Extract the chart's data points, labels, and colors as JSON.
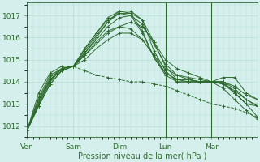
{
  "bg_color": "#d5f0ec",
  "grid_color_major": "#b8ddd8",
  "grid_color_minor": "#c8eae5",
  "line_color": "#2d6a2d",
  "xlabel": "Pression niveau de la mer( hPa )",
  "ylim": [
    1011.5,
    1017.6
  ],
  "yticks": [
    1012,
    1013,
    1014,
    1015,
    1016,
    1017
  ],
  "xtick_labels": [
    "Ven",
    "Sam",
    "Dim",
    "Lun",
    "Mar"
  ],
  "xtick_positions": [
    0,
    24,
    48,
    72,
    96
  ],
  "total_hours": 120,
  "marker": "+",
  "markersize": 3,
  "linewidth": 0.7,
  "vlines": [
    0,
    72,
    96
  ],
  "series": [
    {
      "style": "solid",
      "x": [
        0,
        6,
        12,
        18,
        24,
        30,
        36,
        42,
        48,
        54,
        60,
        66,
        72,
        78,
        84,
        90,
        96,
        102,
        108,
        114,
        120
      ],
      "y": [
        1011.8,
        1013.3,
        1014.3,
        1014.6,
        1014.7,
        1015.2,
        1015.7,
        1016.2,
        1016.5,
        1016.7,
        1016.5,
        1015.8,
        1015.0,
        1014.6,
        1014.4,
        1014.2,
        1014.0,
        1013.7,
        1013.2,
        1012.7,
        1012.3
      ]
    },
    {
      "style": "solid",
      "x": [
        0,
        6,
        12,
        18,
        24,
        30,
        36,
        42,
        48,
        54,
        60,
        66,
        72,
        78,
        84,
        90,
        96,
        102,
        108,
        114,
        120
      ],
      "y": [
        1011.8,
        1013.2,
        1014.2,
        1014.6,
        1014.7,
        1015.3,
        1015.9,
        1016.5,
        1016.9,
        1017.0,
        1016.6,
        1015.7,
        1014.8,
        1014.3,
        1014.1,
        1014.0,
        1014.0,
        1014.0,
        1013.5,
        1013.0,
        1013.0
      ]
    },
    {
      "style": "solid",
      "x": [
        0,
        6,
        12,
        18,
        24,
        30,
        36,
        42,
        48,
        54,
        60,
        66,
        72,
        78,
        84,
        90,
        96,
        102,
        108,
        114,
        120
      ],
      "y": [
        1011.8,
        1013.1,
        1014.1,
        1014.6,
        1014.7,
        1015.5,
        1016.2,
        1016.8,
        1017.1,
        1017.1,
        1016.3,
        1015.1,
        1014.3,
        1014.0,
        1014.0,
        1014.0,
        1014.0,
        1014.2,
        1014.2,
        1013.5,
        1013.2
      ]
    },
    {
      "style": "solid",
      "x": [
        0,
        6,
        12,
        18,
        24,
        30,
        36,
        42,
        48,
        54,
        60,
        66,
        72,
        78,
        84,
        90,
        96,
        102,
        108,
        114,
        120
      ],
      "y": [
        1011.8,
        1013.0,
        1014.1,
        1014.6,
        1014.7,
        1015.5,
        1016.2,
        1016.9,
        1017.2,
        1017.1,
        1016.8,
        1015.4,
        1014.5,
        1014.0,
        1014.0,
        1014.0,
        1014.0,
        1014.0,
        1013.7,
        1013.2,
        1012.9
      ]
    },
    {
      "style": "solid",
      "x": [
        0,
        6,
        12,
        18,
        24,
        30,
        36,
        42,
        48,
        54,
        60,
        66,
        72,
        78,
        84,
        90,
        96,
        102,
        108,
        114,
        120
      ],
      "y": [
        1011.8,
        1013.0,
        1014.0,
        1014.6,
        1014.7,
        1015.4,
        1016.1,
        1016.7,
        1017.1,
        1017.0,
        1016.2,
        1015.1,
        1014.4,
        1014.1,
        1014.1,
        1014.0,
        1014.0,
        1014.0,
        1013.5,
        1013.0,
        1012.9
      ]
    },
    {
      "style": "solid",
      "x": [
        0,
        6,
        12,
        18,
        24,
        30,
        36,
        42,
        48,
        54,
        60,
        66,
        72,
        78,
        84,
        90,
        96,
        102,
        108,
        114,
        120
      ],
      "y": [
        1011.8,
        1012.9,
        1013.9,
        1014.5,
        1014.7,
        1015.0,
        1015.5,
        1015.9,
        1016.2,
        1016.2,
        1015.9,
        1015.2,
        1014.4,
        1014.1,
        1014.0,
        1014.0,
        1014.0,
        1013.9,
        1013.6,
        1013.2,
        1012.9
      ]
    },
    {
      "style": "solid",
      "x": [
        0,
        6,
        12,
        18,
        24,
        30,
        36,
        42,
        48,
        54,
        60,
        66,
        72,
        78,
        84,
        90,
        96,
        102,
        108,
        114,
        120
      ],
      "y": [
        1011.8,
        1012.9,
        1013.9,
        1014.5,
        1014.7,
        1015.2,
        1015.8,
        1016.3,
        1016.5,
        1016.4,
        1015.9,
        1015.2,
        1014.6,
        1014.3,
        1014.2,
        1014.1,
        1014.0,
        1014.0,
        1013.8,
        1013.4,
        1013.2
      ]
    },
    {
      "style": "solid",
      "x": [
        0,
        6,
        12,
        18,
        24,
        30,
        36,
        42,
        48,
        54,
        60,
        66,
        72,
        78,
        84,
        90,
        96,
        102,
        108,
        114,
        120
      ],
      "y": [
        1011.8,
        1013.5,
        1014.4,
        1014.7,
        1014.7,
        1015.3,
        1016.0,
        1016.7,
        1017.2,
        1017.2,
        1016.8,
        1015.8,
        1014.7,
        1014.1,
        1014.1,
        1014.0,
        1014.0,
        1013.9,
        1013.5,
        1013.0,
        1012.4
      ]
    },
    {
      "style": "dashed",
      "x": [
        0,
        6,
        12,
        18,
        24,
        30,
        36,
        42,
        48,
        54,
        60,
        66,
        72,
        78,
        84,
        90,
        96,
        102,
        108,
        114,
        120
      ],
      "y": [
        1011.8,
        1013.2,
        1014.1,
        1014.5,
        1014.7,
        1014.5,
        1014.3,
        1014.2,
        1014.1,
        1014.0,
        1014.0,
        1013.9,
        1013.8,
        1013.6,
        1013.4,
        1013.2,
        1013.0,
        1012.9,
        1012.8,
        1012.6,
        1012.4
      ]
    }
  ]
}
